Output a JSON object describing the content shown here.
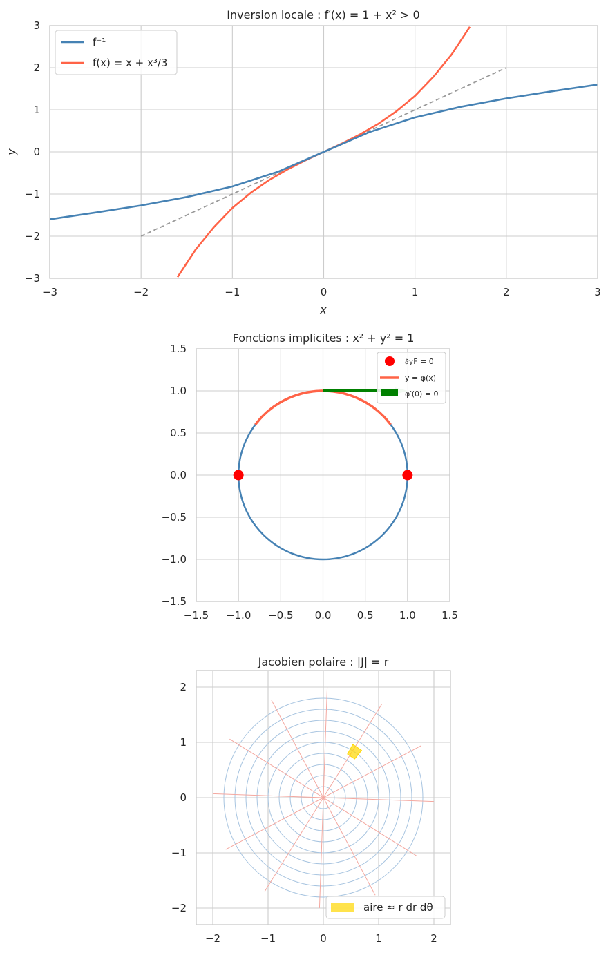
{
  "chart_data": [
    {
      "type": "line",
      "title": "Inversion locale : f′(x) = 1 + x² > 0",
      "xlabel": "x",
      "ylabel": "y",
      "xlim": [
        -3,
        3
      ],
      "ylim": [
        -3,
        3
      ],
      "xticks": [
        -3,
        -2,
        -1,
        0,
        1,
        2,
        3
      ],
      "yticks": [
        -3,
        -2,
        -1,
        0,
        1,
        2,
        3
      ],
      "grid": true,
      "legend_position": "top-left",
      "series": [
        {
          "name": "f⁻¹",
          "color": "#4682b4",
          "x": [
            -3.0,
            -2.5,
            -2.0,
            -1.5,
            -1.0,
            -0.5,
            0.0,
            0.5,
            1.0,
            1.5,
            2.0,
            2.5,
            3.0
          ],
          "y": [
            -1.6,
            -1.44,
            -1.27,
            -1.07,
            -0.82,
            -0.47,
            0.0,
            0.47,
            0.82,
            1.07,
            1.27,
            1.44,
            1.6
          ]
        },
        {
          "name": "f(x) = x + x³/3",
          "color": "#ff6347",
          "x": [
            -1.6,
            -1.4,
            -1.2,
            -1.0,
            -0.8,
            -0.6,
            -0.4,
            -0.2,
            0.0,
            0.2,
            0.4,
            0.6,
            0.8,
            1.0,
            1.2,
            1.4,
            1.6
          ],
          "y": [
            -2.97,
            -2.31,
            -1.78,
            -1.33,
            -0.97,
            -0.67,
            -0.42,
            -0.2,
            0.0,
            0.2,
            0.42,
            0.67,
            0.97,
            1.33,
            1.78,
            2.31,
            2.97
          ]
        },
        {
          "name": "",
          "color": "#999999",
          "dashed": true,
          "x": [
            -2,
            2
          ],
          "y": [
            -2,
            2
          ]
        }
      ]
    },
    {
      "type": "line",
      "title": "Fonctions implicites : x² + y² = 1",
      "xlim": [
        -1.5,
        1.5
      ],
      "ylim": [
        -1.5,
        1.5
      ],
      "xticks": [
        "−1.5",
        "−1.0",
        "−0.5",
        "0.0",
        "0.5",
        "1.0",
        "1.5"
      ],
      "yticks": [
        "−1.5",
        "−1.0",
        "−0.5",
        "0.0",
        "0.5",
        "1.0",
        "1.5"
      ],
      "grid": true,
      "legend_position": "top-right",
      "circle": {
        "radius": 1,
        "color": "#4682b4"
      },
      "series": [
        {
          "name": "y = φ(x)",
          "color": "#ff6347",
          "x_range": [
            -0.8,
            0.8
          ],
          "y": "sqrt(1 - x²)"
        },
        {
          "name": "∂yF = 0",
          "color": "#ff0000",
          "type": "scatter",
          "points": [
            [
              -1,
              0
            ],
            [
              1,
              0
            ]
          ]
        },
        {
          "name": "φ′(0) = 0",
          "color": "#008000",
          "type": "arrow",
          "from": [
            0,
            1
          ],
          "to": [
            1.0,
            1
          ]
        }
      ]
    },
    {
      "type": "polar-grid",
      "title": "Jacobien polaire : |J| = r",
      "xlim": [
        -2.3,
        2.3
      ],
      "ylim": [
        -2.3,
        2.3
      ],
      "xticks": [
        -2,
        -1,
        0,
        1,
        2
      ],
      "yticks": [
        -2,
        -1,
        0,
        1,
        2
      ],
      "grid": true,
      "legend_position": "bottom-right",
      "circle_radii": [
        0.2,
        0.4,
        0.6,
        0.8,
        1.0,
        1.2,
        1.4,
        1.6,
        1.8
      ],
      "circle_color": "#a7c4e0",
      "ray_count": 12,
      "ray_length": 2.0,
      "ray_color": "#f4a8a0",
      "area_element": {
        "name": "aire ≈ r dr dθ",
        "color": "#ffd700",
        "r": [
          0.9,
          1.1
        ],
        "theta_deg": [
          51,
          61
        ]
      }
    }
  ]
}
